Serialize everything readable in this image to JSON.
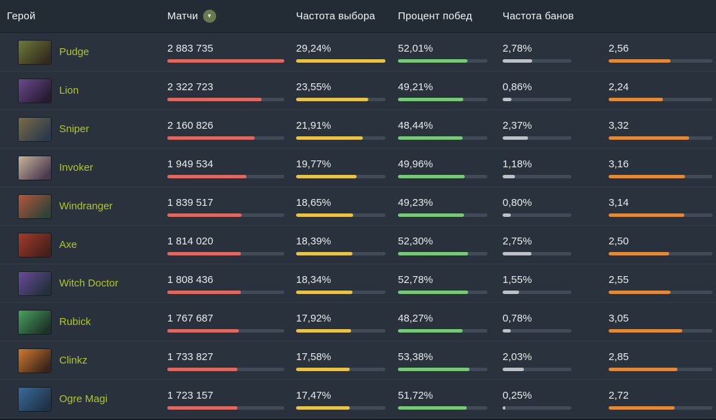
{
  "table": {
    "headers": {
      "hero": "Герой",
      "matches": "Матчи",
      "pick": "Частота выбора",
      "win": "Процент побед",
      "ban": "Частота банов"
    },
    "sort_icon": "chevron-down",
    "rows": [
      {
        "name": "Pudge",
        "matches": "2 883 735",
        "matches_v": 2883735,
        "pick": "29,24%",
        "pick_v": 29.24,
        "win": "52,01%",
        "win_v": 52.01,
        "ban": "2,78%",
        "ban_v": 2.78,
        "last": "2,56",
        "last_v": 2.56,
        "portrait": [
          "#6f7a3a",
          "#342b1e"
        ]
      },
      {
        "name": "Lion",
        "matches": "2 322 723",
        "matches_v": 2322723,
        "pick": "23,55%",
        "pick_v": 23.55,
        "win": "49,21%",
        "win_v": 49.21,
        "ban": "0,86%",
        "ban_v": 0.86,
        "last": "2,24",
        "last_v": 2.24,
        "portrait": [
          "#6a4a8c",
          "#271c33"
        ]
      },
      {
        "name": "Sniper",
        "matches": "2 160 826",
        "matches_v": 2160826,
        "pick": "21,91%",
        "pick_v": 21.91,
        "win": "48,44%",
        "win_v": 48.44,
        "ban": "2,37%",
        "ban_v": 2.37,
        "last": "3,32",
        "last_v": 3.32,
        "portrait": [
          "#7a6a4a",
          "#2c3a4a"
        ]
      },
      {
        "name": "Invoker",
        "matches": "1 949 534",
        "matches_v": 1949534,
        "pick": "19,77%",
        "pick_v": 19.77,
        "win": "49,96%",
        "win_v": 49.96,
        "ban": "1,18%",
        "ban_v": 1.18,
        "last": "3,16",
        "last_v": 3.16,
        "portrait": [
          "#c9b49a",
          "#4a3a50"
        ]
      },
      {
        "name": "Windranger",
        "matches": "1 839 517",
        "matches_v": 1839517,
        "pick": "18,65%",
        "pick_v": 18.65,
        "win": "49,23%",
        "win_v": 49.23,
        "ban": "0,80%",
        "ban_v": 0.8,
        "last": "3,14",
        "last_v": 3.14,
        "portrait": [
          "#b5563f",
          "#2f4436"
        ]
      },
      {
        "name": "Axe",
        "matches": "1 814 020",
        "matches_v": 1814020,
        "pick": "18,39%",
        "pick_v": 18.39,
        "win": "52,30%",
        "win_v": 52.3,
        "ban": "2,75%",
        "ban_v": 2.75,
        "last": "2,50",
        "last_v": 2.5,
        "portrait": [
          "#a33b2e",
          "#46201a"
        ]
      },
      {
        "name": "Witch Doctor",
        "matches": "1 808 436",
        "matches_v": 1808436,
        "pick": "18,34%",
        "pick_v": 18.34,
        "win": "52,78%",
        "win_v": 52.78,
        "ban": "1,55%",
        "ban_v": 1.55,
        "last": "2,55",
        "last_v": 2.55,
        "portrait": [
          "#6a4a9c",
          "#23303a"
        ]
      },
      {
        "name": "Rubick",
        "matches": "1 767 687",
        "matches_v": 1767687,
        "pick": "17,92%",
        "pick_v": 17.92,
        "win": "48,27%",
        "win_v": 48.27,
        "ban": "0,78%",
        "ban_v": 0.78,
        "last": "3,05",
        "last_v": 3.05,
        "portrait": [
          "#4aa061",
          "#1c3326"
        ]
      },
      {
        "name": "Clinkz",
        "matches": "1 733 827",
        "matches_v": 1733827,
        "pick": "17,58%",
        "pick_v": 17.58,
        "win": "53,38%",
        "win_v": 53.38,
        "ban": "2,03%",
        "ban_v": 2.03,
        "last": "2,85",
        "last_v": 2.85,
        "portrait": [
          "#d07a2e",
          "#3a241a"
        ]
      },
      {
        "name": "Ogre Magi",
        "matches": "1 723 157",
        "matches_v": 1723157,
        "pick": "17,47%",
        "pick_v": 17.47,
        "win": "51,72%",
        "win_v": 51.72,
        "ban": "0,25%",
        "ban_v": 0.25,
        "last": "2,72",
        "last_v": 2.72,
        "portrait": [
          "#3a6a9c",
          "#1f3347"
        ]
      }
    ]
  },
  "colors": {
    "matches_bar": "#dd6a62",
    "pick_bar": "#e6c34c",
    "win_bar": "#79c879",
    "ban_bar": "#bcc1c7",
    "last_bar": "#e08a3e",
    "hero_link": "#b2c42f"
  }
}
